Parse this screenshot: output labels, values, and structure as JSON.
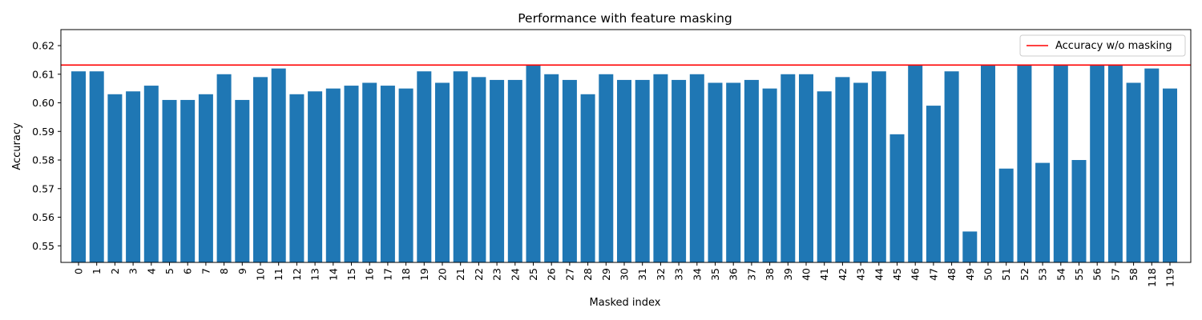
{
  "chart_data": {
    "type": "bar",
    "title": "Performance with feature masking",
    "xlabel": "Masked index",
    "ylabel": "Accuracy",
    "categories": [
      "0",
      "1",
      "2",
      "3",
      "4",
      "5",
      "6",
      "7",
      "8",
      "9",
      "10",
      "11",
      "12",
      "13",
      "14",
      "15",
      "16",
      "17",
      "18",
      "19",
      "20",
      "21",
      "22",
      "23",
      "24",
      "25",
      "26",
      "27",
      "28",
      "29",
      "30",
      "31",
      "32",
      "33",
      "34",
      "35",
      "36",
      "37",
      "38",
      "39",
      "40",
      "41",
      "42",
      "43",
      "44",
      "45",
      "46",
      "47",
      "48",
      "49",
      "50",
      "51",
      "52",
      "53",
      "54",
      "55",
      "56",
      "57",
      "58",
      "118",
      "119"
    ],
    "values": [
      0.611,
      0.611,
      0.603,
      0.604,
      0.606,
      0.601,
      0.601,
      0.603,
      0.61,
      0.601,
      0.609,
      0.612,
      0.603,
      0.604,
      0.605,
      0.606,
      0.607,
      0.606,
      0.605,
      0.611,
      0.607,
      0.611,
      0.609,
      0.608,
      0.608,
      0.613,
      0.61,
      0.608,
      0.603,
      0.61,
      0.608,
      0.608,
      0.61,
      0.608,
      0.61,
      0.607,
      0.607,
      0.608,
      0.605,
      0.61,
      0.61,
      0.604,
      0.609,
      0.607,
      0.611,
      0.589,
      0.613,
      0.599,
      0.611,
      0.555,
      0.613,
      0.577,
      0.613,
      0.579,
      0.613,
      0.58,
      0.613,
      0.613,
      0.607,
      0.612,
      0.605
    ],
    "bar_color": "#1f77b4",
    "reference_line": {
      "label": "Accuracy w/o masking",
      "value": 0.6132,
      "color": "#ff0000"
    },
    "ylim": [
      0.5442,
      0.6256
    ],
    "yticks": [
      0.55,
      0.56,
      0.57,
      0.58,
      0.59,
      0.6,
      0.61,
      0.62
    ],
    "ytick_labels": [
      "0.55",
      "0.56",
      "0.57",
      "0.58",
      "0.59",
      "0.60",
      "0.61",
      "0.62"
    ],
    "legend_position": "top-right",
    "grid": false
  }
}
